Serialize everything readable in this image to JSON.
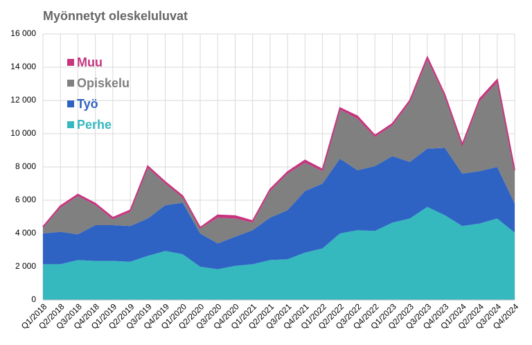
{
  "chart_data": {
    "type": "area",
    "stacked": true,
    "title": "Myönnetyt oleskeluluvat",
    "categories": [
      "Q1/2018",
      "Q2/2018",
      "Q3/2018",
      "Q4/2018",
      "Q1/2019",
      "Q2/2019",
      "Q3/2019",
      "Q4/2019",
      "Q1/2020",
      "Q2/2020",
      "Q3/2020",
      "Q4/2020",
      "Q1/2021",
      "Q2/2021",
      "Q3/2021",
      "Q4/2021",
      "Q1/2022",
      "Q2/2022",
      "Q3/2022",
      "Q4/2022",
      "Q1/2023",
      "Q2/2023",
      "Q3/2023",
      "Q4/2023",
      "Q1/2024",
      "Q2/2024",
      "Q3/2024",
      "Q4/2024"
    ],
    "series": [
      {
        "name": "Perhe",
        "color": "#36b8bf",
        "values": [
          2150,
          2150,
          2400,
          2350,
          2350,
          2300,
          2650,
          2950,
          2750,
          2000,
          1850,
          2050,
          2150,
          2400,
          2450,
          2850,
          3100,
          4000,
          4200,
          4150,
          4650,
          4900,
          5600,
          5100,
          4450,
          4600,
          4900,
          4050
        ]
      },
      {
        "name": "Työ",
        "color": "#2e63c4",
        "values": [
          1850,
          1950,
          1550,
          2150,
          2150,
          2150,
          2250,
          2750,
          3100,
          2000,
          1550,
          1750,
          2050,
          2550,
          2950,
          3700,
          3900,
          4500,
          3600,
          3900,
          4000,
          3400,
          3500,
          4050,
          3150,
          3150,
          3100,
          1750
        ]
      },
      {
        "name": "Opiskelu",
        "color": "#808080",
        "values": [
          350,
          1450,
          2300,
          1200,
          350,
          850,
          3050,
          1300,
          300,
          300,
          1550,
          1100,
          450,
          1600,
          2200,
          1700,
          750,
          2950,
          3100,
          1750,
          1850,
          3600,
          5350,
          3100,
          1650,
          4200,
          5100,
          1950
        ]
      },
      {
        "name": "Muu",
        "color": "#c7357f",
        "values": [
          50,
          100,
          100,
          100,
          100,
          100,
          100,
          100,
          100,
          50,
          150,
          150,
          100,
          100,
          100,
          150,
          100,
          100,
          150,
          100,
          100,
          100,
          150,
          100,
          100,
          150,
          150,
          50
        ]
      }
    ],
    "ylim": [
      0,
      16000
    ],
    "yticks": [
      0,
      {
        "value": 2000,
        "label": "2 000"
      },
      {
        "value": 4000,
        "label": "4 000"
      },
      {
        "value": 6000,
        "label": "6 000"
      },
      {
        "value": 8000,
        "label": "8 000"
      },
      {
        "value": 10000,
        "label": "10 000"
      },
      {
        "value": 12000,
        "label": "12 000"
      },
      {
        "value": 14000,
        "label": "14 000"
      },
      {
        "value": 16000,
        "label": "16 000"
      }
    ],
    "grid": true,
    "legend": "upper left"
  }
}
